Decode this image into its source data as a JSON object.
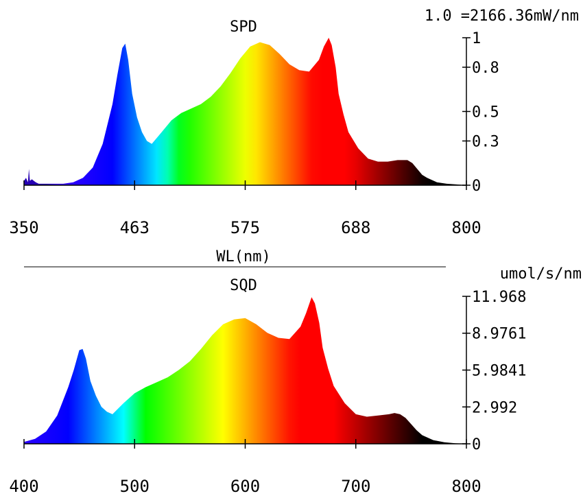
{
  "chart_data": [
    {
      "type": "area",
      "title": "SPD",
      "scale_note": "1.0 =2166.36mW/nm",
      "xlabel": "WL(nm)",
      "xlim": [
        350,
        800
      ],
      "x_ticks": [
        "350",
        "463",
        "575",
        "688",
        "800"
      ],
      "ylim": [
        0,
        1
      ],
      "y_ticks": [
        "0",
        "0.3",
        "0.5",
        "0.8",
        "1"
      ],
      "fill": "visible-spectrum gradient",
      "x": [
        350,
        352,
        354,
        355,
        356,
        358,
        360,
        362,
        365,
        370,
        380,
        390,
        400,
        410,
        420,
        430,
        440,
        445,
        450,
        453,
        456,
        460,
        465,
        470,
        475,
        480,
        490,
        500,
        510,
        520,
        530,
        540,
        550,
        560,
        570,
        580,
        590,
        600,
        610,
        620,
        630,
        640,
        650,
        655,
        660,
        663,
        667,
        670,
        675,
        680,
        690,
        700,
        710,
        720,
        730,
        740,
        745,
        750,
        755,
        760,
        770,
        780,
        790,
        800
      ],
      "y": [
        0.03,
        0.05,
        0.02,
        0.11,
        0.03,
        0.04,
        0.03,
        0.02,
        0.01,
        0.01,
        0.01,
        0.01,
        0.02,
        0.05,
        0.12,
        0.28,
        0.55,
        0.75,
        0.93,
        0.96,
        0.85,
        0.62,
        0.46,
        0.36,
        0.3,
        0.28,
        0.36,
        0.44,
        0.49,
        0.52,
        0.55,
        0.6,
        0.67,
        0.76,
        0.86,
        0.94,
        0.97,
        0.95,
        0.89,
        0.82,
        0.78,
        0.77,
        0.85,
        0.94,
        1.0,
        0.95,
        0.8,
        0.62,
        0.48,
        0.36,
        0.25,
        0.18,
        0.16,
        0.16,
        0.17,
        0.17,
        0.15,
        0.11,
        0.07,
        0.05,
        0.02,
        0.01,
        0.005,
        0.0
      ]
    },
    {
      "type": "area",
      "title": "SQD",
      "ylabel": "umol/s/nm",
      "xlim": [
        400,
        800
      ],
      "x_ticks": [
        "400",
        "500",
        "600",
        "700",
        "800"
      ],
      "ylim": [
        0,
        11.968
      ],
      "y_ticks": [
        "0",
        "2.992",
        "5.9841",
        "8.9761",
        "11.968"
      ],
      "fill": "visible-spectrum gradient",
      "x": [
        400,
        410,
        420,
        430,
        440,
        445,
        450,
        453,
        456,
        460,
        465,
        470,
        475,
        480,
        490,
        500,
        510,
        520,
        530,
        540,
        550,
        560,
        570,
        580,
        590,
        600,
        610,
        620,
        630,
        640,
        650,
        655,
        660,
        663,
        667,
        670,
        675,
        680,
        690,
        700,
        710,
        720,
        730,
        735,
        740,
        745,
        750,
        755,
        760,
        770,
        780,
        790,
        800
      ],
      "y": [
        0.15,
        0.4,
        1.0,
        2.3,
        4.6,
        6.0,
        7.6,
        7.7,
        6.9,
        5.1,
        3.9,
        3.0,
        2.6,
        2.4,
        3.3,
        4.1,
        4.6,
        5.0,
        5.4,
        6.0,
        6.7,
        7.7,
        8.8,
        9.7,
        10.1,
        10.2,
        9.7,
        9.0,
        8.6,
        8.5,
        9.5,
        10.6,
        11.9,
        11.4,
        9.8,
        7.8,
        6.1,
        4.7,
        3.3,
        2.4,
        2.2,
        2.3,
        2.4,
        2.5,
        2.4,
        2.1,
        1.6,
        1.1,
        0.7,
        0.3,
        0.12,
        0.04,
        0.0
      ]
    }
  ]
}
